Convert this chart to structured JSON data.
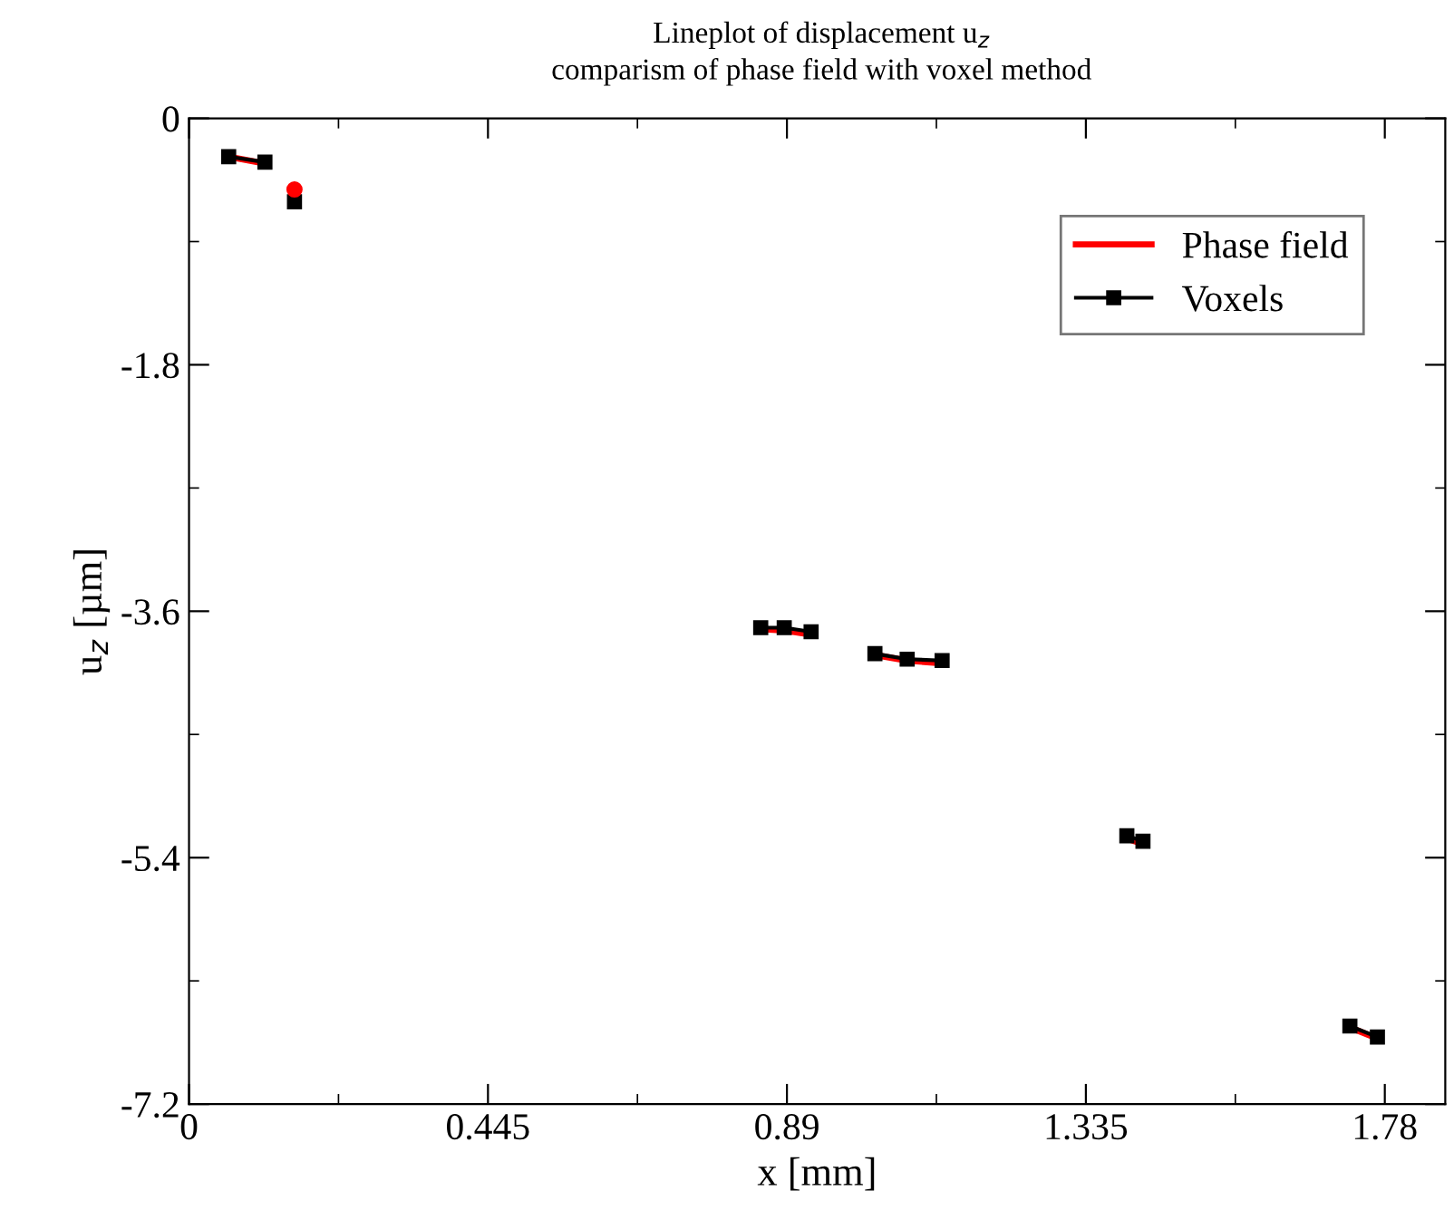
{
  "chart_data": {
    "type": "line",
    "title": "Lineplot of displacement u$_{z}$",
    "subtitle": "comparism of phase field with voxel method",
    "xlabel": "x [mm]",
    "ylabel": "u$_{z}$ [µm]",
    "xlim": [
      0,
      1.87
    ],
    "xticks": [
      0,
      0.445,
      0.89,
      1.335,
      1.78
    ],
    "ylim": [
      -7.2,
      0
    ],
    "yticks": [
      -7.2,
      -5.4,
      -3.6,
      -1.8,
      0
    ],
    "grid": false,
    "legend": "top right",
    "series": [
      {
        "name": "Phase field",
        "color": "#ff0000",
        "marker": "none",
        "x": [
          0.059,
          0.113,
          null,
          0.851,
          0.886,
          0.926,
          null,
          1.021,
          1.069,
          1.121,
          null,
          1.396,
          1.42,
          null,
          1.728,
          1.769
        ],
        "values": [
          -0.28,
          -0.33,
          null,
          -3.73,
          -3.74,
          -3.77,
          null,
          -3.92,
          -3.96,
          -3.98,
          null,
          -5.26,
          -5.3,
          null,
          -6.64,
          -6.72
        ]
      },
      {
        "name": "Voxels",
        "color": "#000000",
        "marker": "square",
        "x": [
          0.059,
          0.113,
          null,
          0.157,
          null,
          0.851,
          0.886,
          0.926,
          null,
          1.021,
          1.069,
          1.121,
          null,
          1.396,
          1.42,
          null,
          1.728,
          1.769
        ],
        "values": [
          -0.28,
          -0.32,
          null,
          -0.61,
          null,
          -3.72,
          -3.72,
          -3.75,
          null,
          -3.91,
          -3.95,
          -3.96,
          null,
          -5.24,
          -5.28,
          null,
          -6.63,
          -6.71
        ]
      },
      {
        "type": "scatter",
        "color": "#ff0000",
        "marker": "circle",
        "x": [
          0.157
        ],
        "values": [
          -0.52
        ]
      }
    ]
  }
}
